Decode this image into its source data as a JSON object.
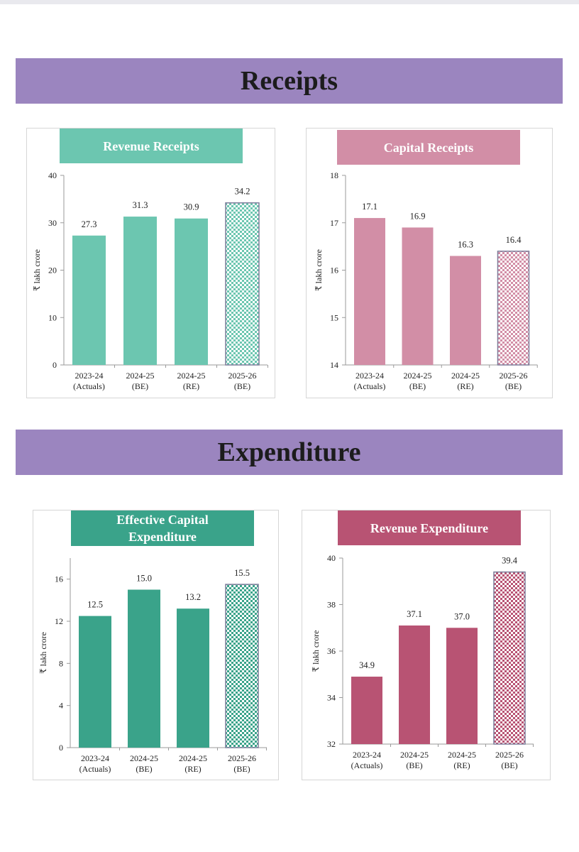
{
  "sections": {
    "receipts_title": "Receipts",
    "receipts_color": "#9b85bf",
    "expenditure_title": "Expenditure",
    "expenditure_color": "#9b85bf"
  },
  "chart_data": [
    {
      "id": "revenue-receipts",
      "type": "bar",
      "title": "Revenue Receipts",
      "ylabel": "₹ lakh crore",
      "categories": [
        [
          "2023-24",
          "(Actuals)"
        ],
        [
          "2024-25",
          "(BE)"
        ],
        [
          "2024-25",
          "(RE)"
        ],
        [
          "2025-26",
          "(BE)"
        ]
      ],
      "values": [
        27.3,
        31.3,
        30.9,
        34.2
      ],
      "value_labels": [
        "27.3",
        "31.3",
        "30.9",
        "34.2"
      ],
      "ylim": [
        0,
        40
      ],
      "yticks": [
        0,
        10,
        20,
        30,
        40
      ],
      "ytick_labels": [
        "0",
        "10",
        "20",
        "30",
        "40"
      ],
      "patterned": [
        false,
        false,
        false,
        true
      ],
      "color": "#6cc6b0",
      "title_color": "#6cc6b0",
      "grid": false
    },
    {
      "id": "capital-receipts",
      "type": "bar",
      "title": "Capital Receipts",
      "ylabel": "₹ lakh crore",
      "categories": [
        [
          "2023-24",
          "(Actuals)"
        ],
        [
          "2024-25",
          "(BE)"
        ],
        [
          "2024-25",
          "(RE)"
        ],
        [
          "2025-26",
          "(BE)"
        ]
      ],
      "values": [
        17.1,
        16.9,
        16.3,
        16.4
      ],
      "value_labels": [
        "17.1",
        "16.9",
        "16.3",
        "16.4"
      ],
      "ylim": [
        14,
        18
      ],
      "yticks": [
        14,
        15,
        16,
        17,
        18
      ],
      "ytick_labels": [
        "14",
        "15",
        "16",
        "17",
        "18"
      ],
      "patterned": [
        false,
        false,
        false,
        true
      ],
      "color": "#d28ea6",
      "title_color": "#d28ea6",
      "grid": false
    },
    {
      "id": "effective-capital-expenditure",
      "type": "bar",
      "title": "Effective Capital Expenditure",
      "title_lines": [
        "Effective Capital",
        "Expenditure"
      ],
      "ylabel": "₹ lakh crore",
      "categories": [
        [
          "2023-24",
          "(Actuals)"
        ],
        [
          "2024-25",
          "(BE)"
        ],
        [
          "2024-25",
          "(RE)"
        ],
        [
          "2025-26",
          "(BE)"
        ]
      ],
      "values": [
        12.5,
        15.0,
        13.2,
        15.5
      ],
      "value_labels": [
        "12.5",
        "15.0",
        "13.2",
        "15.5"
      ],
      "ylim": [
        0,
        18
      ],
      "yticks": [
        0,
        4,
        8,
        12,
        16
      ],
      "ytick_labels": [
        "0",
        "4",
        "8",
        "12",
        "16"
      ],
      "patterned": [
        false,
        false,
        false,
        true
      ],
      "color": "#3aa38a",
      "title_color": "#3aa38a",
      "grid": false
    },
    {
      "id": "revenue-expenditure",
      "type": "bar",
      "title": "Revenue Expenditure",
      "ylabel": "₹ lakh crore",
      "categories": [
        [
          "2023-24",
          "(Actuals)"
        ],
        [
          "2024-25",
          "(BE)"
        ],
        [
          "2024-25",
          "(RE)"
        ],
        [
          "2025-26",
          "(BE)"
        ]
      ],
      "values": [
        34.9,
        37.1,
        37.0,
        39.4
      ],
      "value_labels": [
        "34.9",
        "37.1",
        "37.0",
        "39.4"
      ],
      "ylim": [
        32,
        40
      ],
      "yticks": [
        32,
        34,
        36,
        38,
        40
      ],
      "ytick_labels": [
        "32",
        "34",
        "36",
        "38",
        "40"
      ],
      "patterned": [
        false,
        false,
        false,
        true
      ],
      "color": "#b85373",
      "title_color": "#b85373",
      "grid": false
    }
  ]
}
